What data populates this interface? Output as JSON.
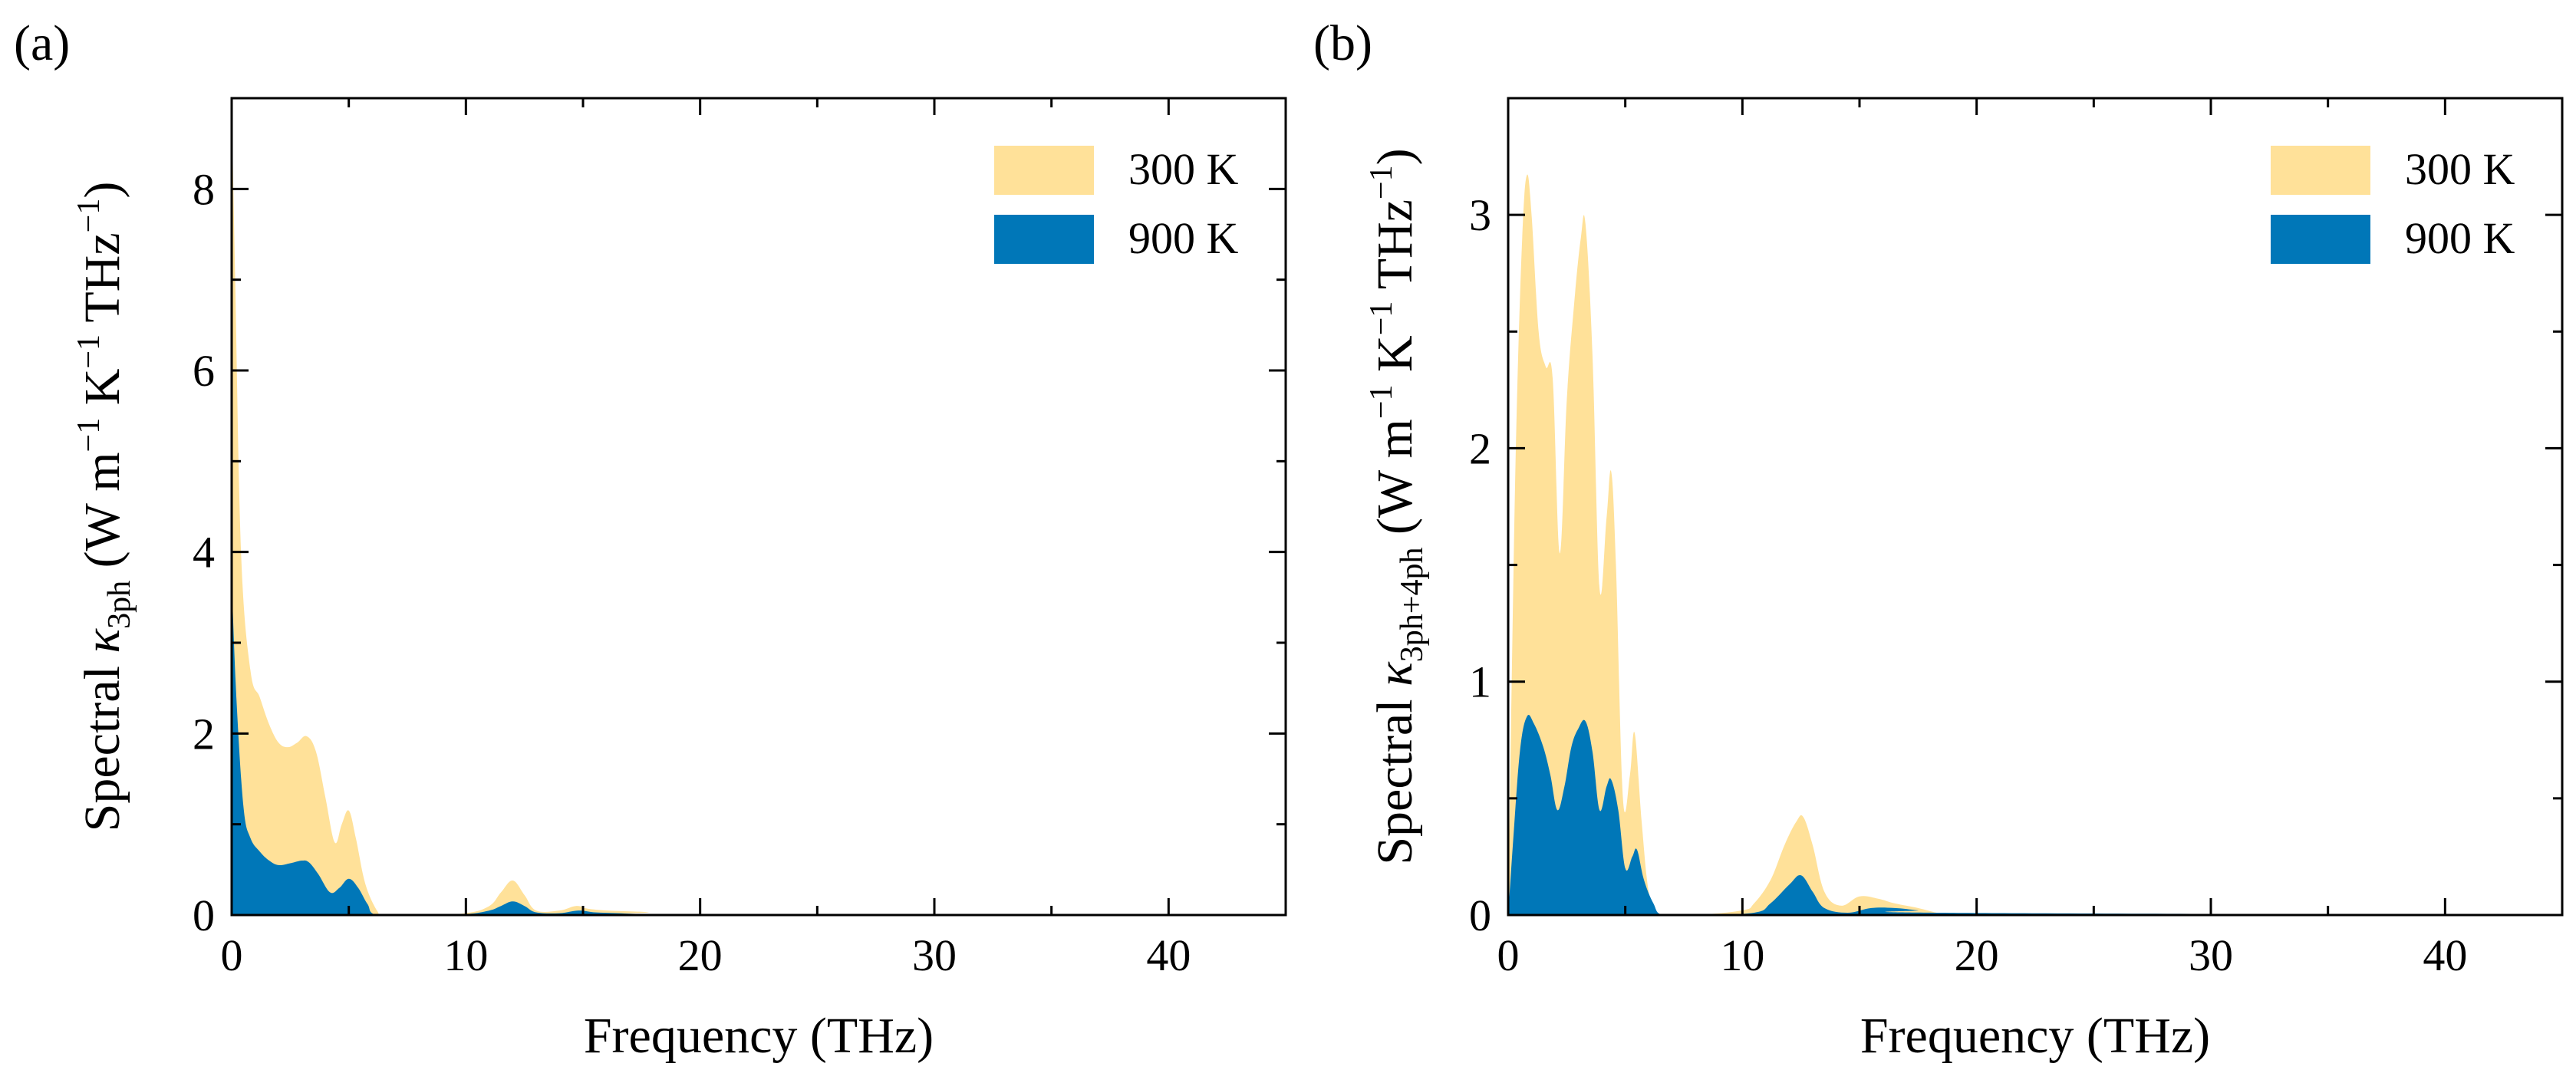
{
  "colors": {
    "t300": "#FFE199",
    "t900": "#0077B8",
    "axis": "#000000"
  },
  "chart_data": [
    {
      "panel_label": "(a)",
      "type": "area",
      "xlabel": "Frequency (THz)",
      "ylabel": {
        "prefix": "Spectral ",
        "symbol": "κ",
        "subscript": "3ph",
        "units_lead": " (W m",
        "exp1": "−1",
        "units_mid": " K",
        "exp2": "−1",
        "units_tail": " THz",
        "exp3": "−1",
        "close": ")"
      },
      "xlim": [
        0,
        45
      ],
      "ylim": [
        0,
        9
      ],
      "xticks": [
        0,
        10,
        20,
        30,
        40
      ],
      "yticks": [
        0,
        2,
        4,
        6,
        8
      ],
      "legend_position": "top-right",
      "series": [
        {
          "name": "300 K",
          "color_key": "t300",
          "x": [
            0,
            0.15,
            0.4,
            0.8,
            1.2,
            1.6,
            2.0,
            2.4,
            2.8,
            3.2,
            3.6,
            4.0,
            4.4,
            4.7,
            5.0,
            5.3,
            5.7,
            6.2,
            6.5,
            8,
            10,
            11,
            11.5,
            12,
            12.5,
            13,
            14,
            14.7,
            15.2,
            16,
            17,
            17.8,
            18.5,
            45
          ],
          "y": [
            9.0,
            7.0,
            4.0,
            2.7,
            2.4,
            2.1,
            1.9,
            1.85,
            1.9,
            1.97,
            1.8,
            1.3,
            0.8,
            1.0,
            1.15,
            0.85,
            0.35,
            0.05,
            0.0,
            0.0,
            0.02,
            0.1,
            0.25,
            0.38,
            0.22,
            0.05,
            0.05,
            0.1,
            0.07,
            0.05,
            0.04,
            0.03,
            0.0,
            0.0
          ]
        },
        {
          "name": "900 K",
          "color_key": "t900",
          "x": [
            0,
            0.2,
            0.5,
            0.8,
            1.2,
            1.6,
            2.0,
            2.5,
            3.0,
            3.3,
            3.7,
            4.2,
            4.6,
            5.0,
            5.4,
            5.8,
            6.2,
            8,
            10,
            11,
            11.5,
            12,
            12.5,
            13,
            14,
            14.8,
            15.5,
            16.5,
            17.5,
            18.5,
            45
          ],
          "y": [
            3.7,
            2.4,
            1.2,
            0.85,
            0.7,
            0.6,
            0.55,
            0.57,
            0.6,
            0.58,
            0.45,
            0.25,
            0.3,
            0.4,
            0.3,
            0.12,
            0.0,
            0.0,
            0.01,
            0.05,
            0.1,
            0.15,
            0.1,
            0.03,
            0.02,
            0.05,
            0.03,
            0.02,
            0.01,
            0.0,
            0.0
          ]
        }
      ]
    },
    {
      "panel_label": "(b)",
      "type": "area",
      "xlabel": "Frequency (THz)",
      "ylabel": {
        "prefix": "Spectral ",
        "symbol": "κ",
        "subscript": "3ph+4ph",
        "units_lead": " (W m",
        "exp1": "−1",
        "units_mid": " K",
        "exp2": "−1",
        "units_tail": " THz",
        "exp3": "−1",
        "close": ")"
      },
      "xlim": [
        0,
        45
      ],
      "ylim": [
        0,
        3.5
      ],
      "xticks": [
        0,
        10,
        20,
        30,
        40
      ],
      "yticks": [
        0,
        1,
        2,
        3
      ],
      "legend_position": "top-right",
      "series": [
        {
          "name": "300 K",
          "color_key": "t300",
          "x": [
            0,
            0.15,
            0.35,
            0.6,
            0.8,
            1.0,
            1.3,
            1.6,
            1.9,
            2.2,
            2.5,
            2.8,
            3.1,
            3.3,
            3.6,
            3.9,
            4.2,
            4.4,
            4.6,
            4.9,
            5.2,
            5.4,
            5.7,
            6.0,
            6.4,
            8,
            10,
            10.5,
            11.2,
            11.8,
            12.3,
            12.6,
            13.0,
            13.5,
            14.2,
            15,
            15.8,
            16.5,
            17.5,
            18.3,
            19,
            45
          ],
          "y": [
            0,
            1.0,
            2.1,
            2.9,
            3.17,
            3.0,
            2.5,
            2.35,
            2.3,
            1.55,
            2.2,
            2.6,
            2.9,
            2.96,
            2.4,
            1.4,
            1.7,
            1.9,
            1.5,
            0.5,
            0.6,
            0.78,
            0.4,
            0.1,
            0.0,
            0.0,
            0.02,
            0.05,
            0.15,
            0.3,
            0.4,
            0.42,
            0.3,
            0.1,
            0.04,
            0.08,
            0.07,
            0.05,
            0.03,
            0.01,
            0.0,
            0.0
          ]
        },
        {
          "name": "900 K",
          "color_key": "t900",
          "x": [
            0,
            0.2,
            0.5,
            0.8,
            1.1,
            1.5,
            1.8,
            2.1,
            2.4,
            2.7,
            3.0,
            3.3,
            3.6,
            3.9,
            4.2,
            4.4,
            4.7,
            5.0,
            5.3,
            5.5,
            5.8,
            6.2,
            6.6,
            8,
            10.5,
            11.2,
            12,
            12.5,
            13,
            13.5,
            14.5,
            15.5,
            16.5,
            17.5,
            18.5,
            45
          ],
          "y": [
            0,
            0.3,
            0.7,
            0.85,
            0.82,
            0.72,
            0.6,
            0.45,
            0.55,
            0.72,
            0.8,
            0.83,
            0.7,
            0.45,
            0.55,
            0.58,
            0.45,
            0.2,
            0.25,
            0.28,
            0.15,
            0.05,
            0.0,
            0.0,
            0.01,
            0.05,
            0.13,
            0.17,
            0.1,
            0.03,
            0.01,
            0.03,
            0.03,
            0.02,
            0.01,
            0.0
          ]
        }
      ]
    }
  ]
}
